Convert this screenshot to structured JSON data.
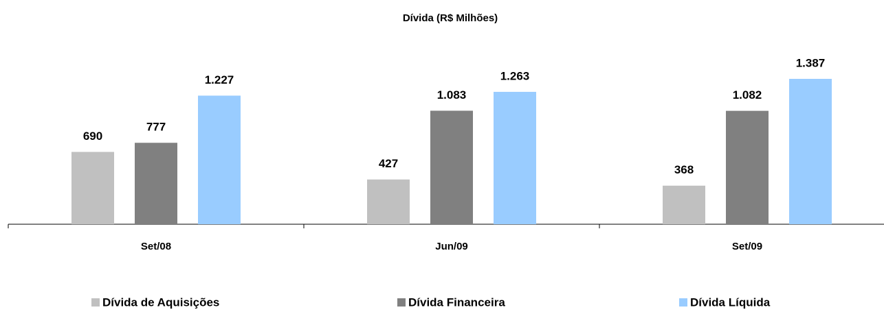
{
  "chart_data": {
    "type": "bar",
    "title": "Dívida (R$ Milhões)",
    "categories": [
      "Set/08",
      "Jun/09",
      "Set/09"
    ],
    "series": [
      {
        "name": "Dívida de Aquisições",
        "color": "#c0c0c0",
        "values": [
          690,
          427,
          368
        ],
        "value_labels": [
          "690",
          "427",
          "368"
        ]
      },
      {
        "name": "Dívida Financeira",
        "color": "#808080",
        "values": [
          777,
          1083,
          1082
        ],
        "value_labels": [
          "777",
          "1.083",
          "1.082"
        ]
      },
      {
        "name": "Dívida Líquida",
        "color": "#99ccff",
        "values": [
          1227,
          1263,
          1387
        ],
        "value_labels": [
          "1.227",
          "1.263",
          "1.387"
        ]
      }
    ],
    "legend": "bottom"
  }
}
